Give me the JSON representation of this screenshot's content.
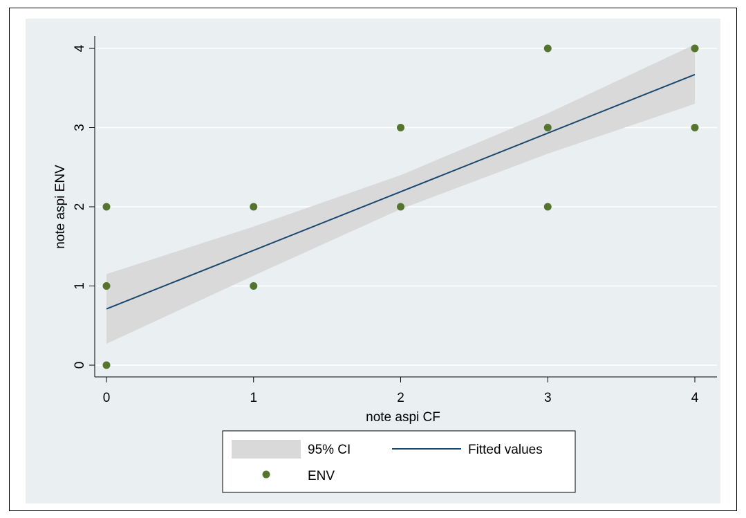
{
  "chart_data": {
    "type": "scatter",
    "xlabel": "note aspi CF",
    "ylabel": "note aspi ENV",
    "xlim": [
      0,
      4
    ],
    "ylim": [
      0,
      4
    ],
    "x_ticks": [
      "0",
      "1",
      "2",
      "3",
      "4"
    ],
    "y_ticks": [
      "0",
      "1",
      "2",
      "3",
      "4"
    ],
    "grid": true,
    "legend_position": "bottom",
    "colors": {
      "background": "#eaf0f2",
      "ci_band": "#d9d9d9",
      "fitted_line": "#1a476f",
      "points": "#55752f",
      "gridline": "#ffffff"
    },
    "series": [
      {
        "name": "ENV",
        "kind": "scatter",
        "points": [
          {
            "x": 0,
            "y": 0
          },
          {
            "x": 0,
            "y": 1
          },
          {
            "x": 0,
            "y": 2
          },
          {
            "x": 1,
            "y": 1
          },
          {
            "x": 1,
            "y": 2
          },
          {
            "x": 2,
            "y": 2
          },
          {
            "x": 2,
            "y": 3
          },
          {
            "x": 3,
            "y": 2
          },
          {
            "x": 3,
            "y": 3
          },
          {
            "x": 3,
            "y": 4
          },
          {
            "x": 4,
            "y": 3
          },
          {
            "x": 4,
            "y": 4
          }
        ]
      },
      {
        "name": "Fitted values",
        "kind": "line",
        "points": [
          {
            "x": 0,
            "y": 0.71
          },
          {
            "x": 4,
            "y": 3.67
          }
        ]
      },
      {
        "name": "95% CI",
        "kind": "band",
        "x": [
          0,
          1,
          2,
          3,
          4
        ],
        "lower": [
          0.27,
          1.13,
          1.97,
          2.67,
          3.3
        ],
        "upper": [
          1.15,
          1.75,
          2.4,
          3.18,
          4.05
        ]
      }
    ],
    "legend": [
      {
        "label": "95% CI",
        "symbol": "band"
      },
      {
        "label": "Fitted values",
        "symbol": "line"
      },
      {
        "label": "ENV",
        "symbol": "point"
      }
    ]
  }
}
